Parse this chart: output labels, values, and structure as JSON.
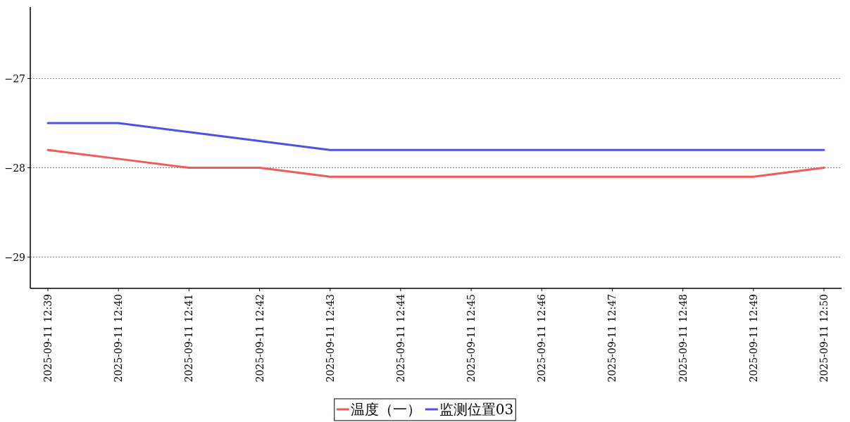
{
  "chart_data": {
    "type": "line",
    "categories": [
      "2025-09-11 12:39",
      "2025-09-11 12:40",
      "2025-09-11 12:41",
      "2025-09-11 12:42",
      "2025-09-11 12:43",
      "2025-09-11 12:44",
      "2025-09-11 12:45",
      "2025-09-11 12:46",
      "2025-09-11 12:47",
      "2025-09-11 12:48",
      "2025-09-11 12:49",
      "2025-09-11 12:50"
    ],
    "series": [
      {
        "name": "温度（一）",
        "color": "#f05a5a",
        "values": [
          -27.8,
          -27.9,
          -28.0,
          -28.0,
          -28.1,
          -28.1,
          -28.1,
          -28.1,
          -28.1,
          -28.1,
          -28.1,
          -28.0
        ]
      },
      {
        "name": "监测位置03",
        "color": "#5050e6",
        "values": [
          -27.5,
          -27.5,
          -27.6,
          -27.7,
          -27.8,
          -27.8,
          -27.8,
          -27.8,
          -27.8,
          -27.8,
          -27.8,
          -27.8
        ]
      }
    ],
    "ylim": [
      -29.35,
      -26.2
    ],
    "yticks": [
      -29,
      -28,
      -27
    ],
    "grid": "y",
    "legend": "bottom",
    "line_style": "solid"
  }
}
